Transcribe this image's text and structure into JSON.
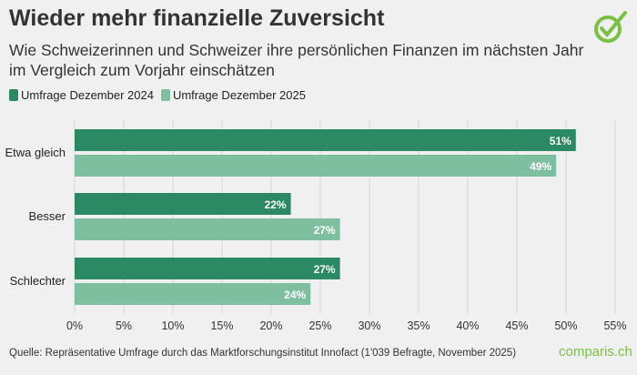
{
  "title": "Wieder mehr finanzielle Zuversicht",
  "subtitle": "Wie Schweizerinnen und Schweizer ihre persönlichen Finanzen im nächsten Jahr im Vergleich zum Vorjahr einschätzen",
  "source": "Quelle: Repräsentative Umfrage durch das Marktforschungsinstitut Innofact (1'039 Befragte, November 2025)",
  "brand": "comparis.ch",
  "logo_icon": "check-circle-icon",
  "colors": {
    "series1": "#2b8a63",
    "series2": "#7dbf9f",
    "brand": "#7ac143"
  },
  "chart_data": {
    "type": "bar",
    "orientation": "horizontal",
    "categories": [
      "Etwa gleich",
      "Besser",
      "Schlechter"
    ],
    "series": [
      {
        "name": "Umfrage Dezember 2024",
        "values": [
          51,
          22,
          27
        ],
        "labels": [
          "51%",
          "22%",
          "27%"
        ]
      },
      {
        "name": "Umfrage Dezember 2025",
        "values": [
          49,
          27,
          24
        ],
        "labels": [
          "49%",
          "27%",
          "24%"
        ]
      }
    ],
    "xlim": [
      0,
      55
    ],
    "ticks": [
      "0%",
      "5%",
      "10%",
      "15%",
      "20%",
      "25%",
      "30%",
      "35%",
      "40%",
      "45%",
      "50%",
      "55%"
    ],
    "grid": true,
    "legend": "top-left"
  }
}
